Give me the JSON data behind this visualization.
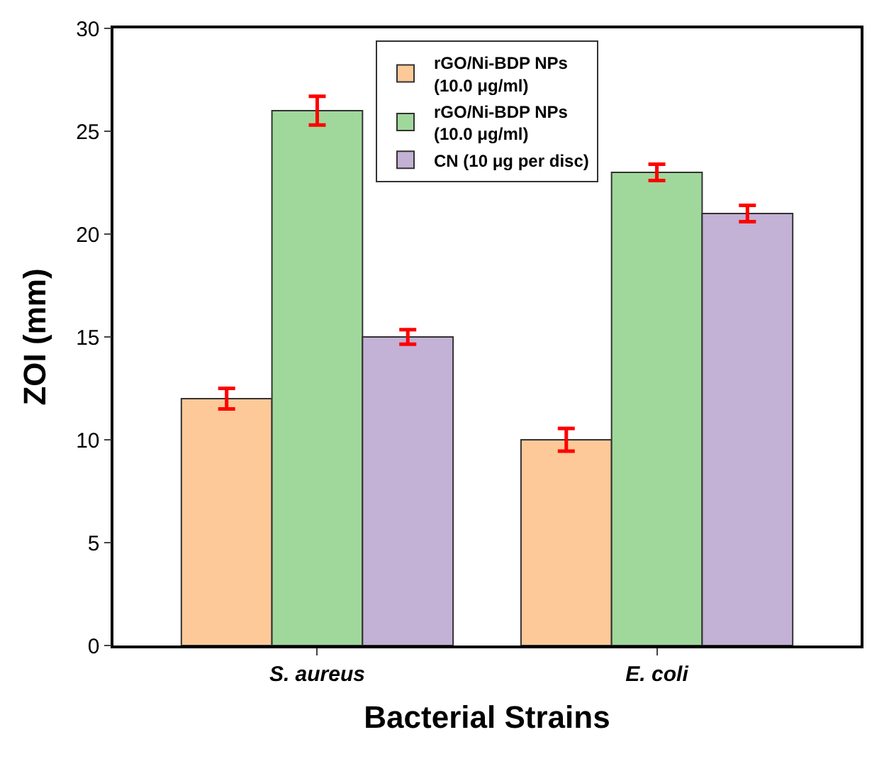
{
  "chart_data": {
    "type": "bar",
    "xlabel": "Bacterial Strains",
    "ylabel": "ZOI (mm)",
    "categories": [
      "S. aureus",
      "E. coli"
    ],
    "series": [
      {
        "name": "rGO/Ni-BDP NPs\n(10.0 μg/ml)",
        "color": "#fdc998",
        "values": [
          12,
          10
        ],
        "errors": [
          0.5,
          0.55
        ]
      },
      {
        "name": "rGO/Ni-BDP NPs\n(10.0 μg/ml)",
        "color": "#a0d89c",
        "values": [
          26,
          23
        ],
        "errors": [
          0.7,
          0.4
        ]
      },
      {
        "name": "CN (10 μg per disc)",
        "color": "#c3b1d6",
        "values": [
          15,
          21
        ],
        "errors": [
          0.35,
          0.4
        ]
      }
    ],
    "ylim": [
      0,
      30
    ],
    "yticks": [
      0,
      5,
      10,
      15,
      20,
      25,
      30
    ],
    "legend": "top"
  }
}
